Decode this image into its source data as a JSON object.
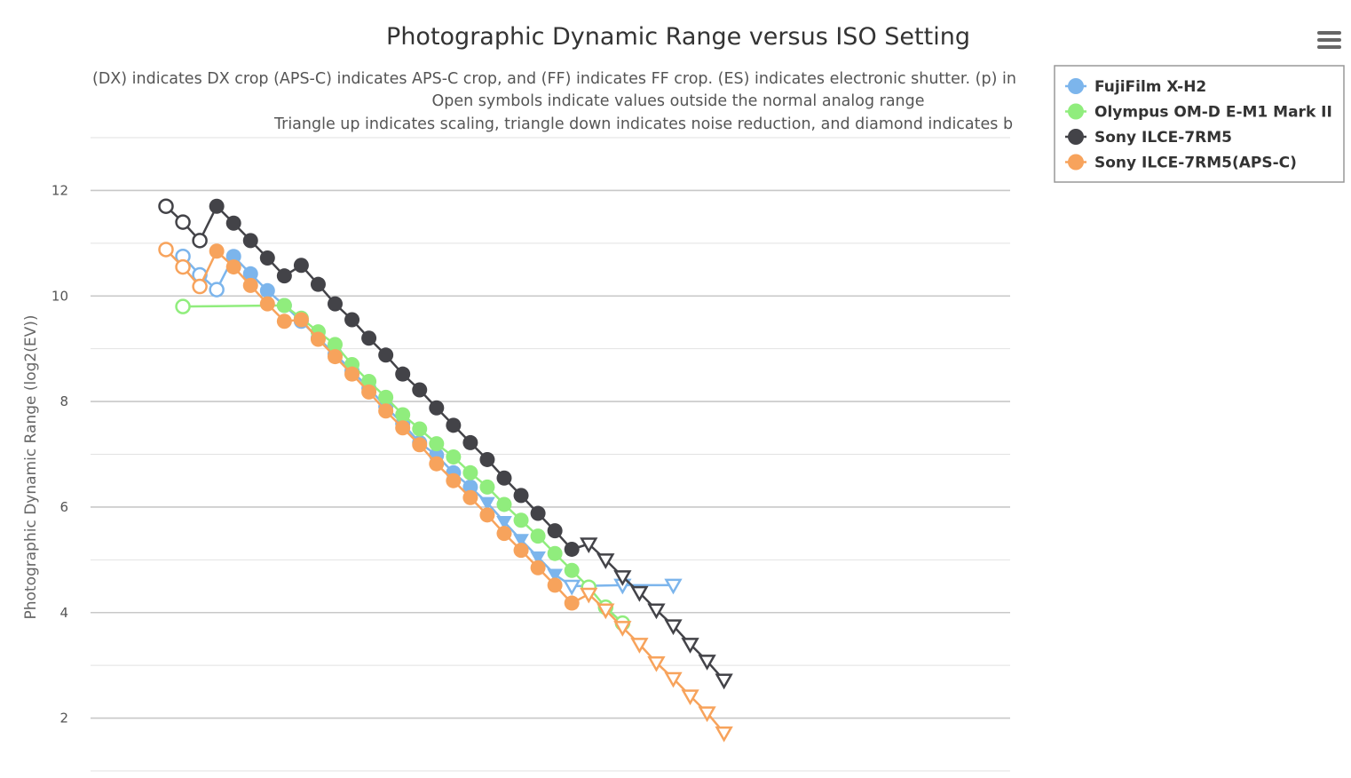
{
  "chart_data": {
    "type": "line",
    "title": "Photographic Dynamic Range versus ISO Setting",
    "subtitle": [
      "(DX) indicates DX crop (APS-C) indicates APS-C crop, and (FF) indicates FF crop. (ES) indicates electronic shutter. (p) in",
      "Open symbols indicate values outside the normal analog range",
      "Triangle up indicates scaling, triangle down indicates noise reduction, and diamond indicates b"
    ],
    "ylabel": "Photographic Dynamic Range (log2(EV))",
    "xlabel": "",
    "ylim": [
      1,
      13
    ],
    "yticks": [
      2,
      4,
      6,
      8,
      10,
      12
    ],
    "grid": true,
    "legend_position": "top-right",
    "series": [
      {
        "name": "FujiFilm X-H2",
        "color": "#7cb5ec",
        "points": [
          {
            "x": 1,
            "y": 10.75,
            "m": "o"
          },
          {
            "x": 2,
            "y": 10.4,
            "m": "o"
          },
          {
            "x": 3,
            "y": 10.12,
            "m": "o"
          },
          {
            "x": 4,
            "y": 10.75,
            "m": "c"
          },
          {
            "x": 5,
            "y": 10.42,
            "m": "c"
          },
          {
            "x": 6,
            "y": 10.1,
            "m": "c"
          },
          {
            "x": 7,
            "y": 9.82,
            "m": "c"
          },
          {
            "x": 8,
            "y": 9.52,
            "m": "c"
          },
          {
            "x": 9,
            "y": 9.2,
            "m": "c"
          },
          {
            "x": 10,
            "y": 8.9,
            "m": "c"
          },
          {
            "x": 11,
            "y": 8.58,
            "m": "c"
          },
          {
            "x": 12,
            "y": 8.25,
            "m": "c"
          },
          {
            "x": 13,
            "y": 7.9,
            "m": "c"
          },
          {
            "x": 14,
            "y": 7.58,
            "m": "c"
          },
          {
            "x": 15,
            "y": 7.22,
            "m": "c"
          },
          {
            "x": 16,
            "y": 6.98,
            "m": "c"
          },
          {
            "x": 17,
            "y": 6.65,
            "m": "c"
          },
          {
            "x": 18,
            "y": 6.38,
            "m": "c"
          },
          {
            "x": 19,
            "y": 6.08,
            "m": "v"
          },
          {
            "x": 20,
            "y": 5.72,
            "m": "v"
          },
          {
            "x": 21,
            "y": 5.38,
            "m": "v"
          },
          {
            "x": 22,
            "y": 5.05,
            "m": "v"
          },
          {
            "x": 23,
            "y": 4.72,
            "m": "v"
          },
          {
            "x": 24,
            "y": 4.5,
            "m": "vo"
          },
          {
            "x": 27,
            "y": 4.52,
            "m": "vo"
          },
          {
            "x": 30,
            "y": 4.52,
            "m": "vo"
          }
        ]
      },
      {
        "name": "Olympus OM-D E-M1 Mark II",
        "color": "#90ed7d",
        "points": [
          {
            "x": 1,
            "y": 9.8,
            "m": "o"
          },
          {
            "x": 7,
            "y": 9.82,
            "m": "c"
          },
          {
            "x": 8,
            "y": 9.58,
            "m": "c"
          },
          {
            "x": 9,
            "y": 9.32,
            "m": "c"
          },
          {
            "x": 10,
            "y": 9.08,
            "m": "c"
          },
          {
            "x": 11,
            "y": 8.7,
            "m": "c"
          },
          {
            "x": 12,
            "y": 8.38,
            "m": "c"
          },
          {
            "x": 13,
            "y": 8.08,
            "m": "c"
          },
          {
            "x": 14,
            "y": 7.75,
            "m": "c"
          },
          {
            "x": 15,
            "y": 7.48,
            "m": "c"
          },
          {
            "x": 16,
            "y": 7.2,
            "m": "c"
          },
          {
            "x": 17,
            "y": 6.95,
            "m": "c"
          },
          {
            "x": 18,
            "y": 6.65,
            "m": "c"
          },
          {
            "x": 19,
            "y": 6.38,
            "m": "c"
          },
          {
            "x": 20,
            "y": 6.05,
            "m": "c"
          },
          {
            "x": 21,
            "y": 5.75,
            "m": "c"
          },
          {
            "x": 22,
            "y": 5.45,
            "m": "c"
          },
          {
            "x": 23,
            "y": 5.12,
            "m": "c"
          },
          {
            "x": 24,
            "y": 4.8,
            "m": "c"
          },
          {
            "x": 25,
            "y": 4.48,
            "m": "o"
          },
          {
            "x": 26,
            "y": 4.1,
            "m": "o"
          },
          {
            "x": 27,
            "y": 3.8,
            "m": "o"
          }
        ]
      },
      {
        "name": "Sony ILCE-7RM5",
        "color": "#434348",
        "points": [
          {
            "x": 0,
            "y": 11.7,
            "m": "o"
          },
          {
            "x": 1,
            "y": 11.4,
            "m": "o"
          },
          {
            "x": 2,
            "y": 11.05,
            "m": "o"
          },
          {
            "x": 3,
            "y": 11.7,
            "m": "c"
          },
          {
            "x": 4,
            "y": 11.38,
            "m": "c"
          },
          {
            "x": 5,
            "y": 11.05,
            "m": "c"
          },
          {
            "x": 6,
            "y": 10.72,
            "m": "c"
          },
          {
            "x": 7,
            "y": 10.38,
            "m": "c"
          },
          {
            "x": 8,
            "y": 10.58,
            "m": "c"
          },
          {
            "x": 9,
            "y": 10.22,
            "m": "c"
          },
          {
            "x": 10,
            "y": 9.85,
            "m": "c"
          },
          {
            "x": 11,
            "y": 9.55,
            "m": "c"
          },
          {
            "x": 12,
            "y": 9.2,
            "m": "c"
          },
          {
            "x": 13,
            "y": 8.88,
            "m": "c"
          },
          {
            "x": 14,
            "y": 8.52,
            "m": "c"
          },
          {
            "x": 15,
            "y": 8.22,
            "m": "c"
          },
          {
            "x": 16,
            "y": 7.88,
            "m": "c"
          },
          {
            "x": 17,
            "y": 7.55,
            "m": "c"
          },
          {
            "x": 18,
            "y": 7.22,
            "m": "c"
          },
          {
            "x": 19,
            "y": 6.9,
            "m": "c"
          },
          {
            "x": 20,
            "y": 6.55,
            "m": "c"
          },
          {
            "x": 21,
            "y": 6.22,
            "m": "c"
          },
          {
            "x": 22,
            "y": 5.88,
            "m": "c"
          },
          {
            "x": 23,
            "y": 5.55,
            "m": "c"
          },
          {
            "x": 24,
            "y": 5.2,
            "m": "c"
          },
          {
            "x": 25,
            "y": 5.3,
            "m": "vo"
          },
          {
            "x": 26,
            "y": 5.0,
            "m": "vo"
          },
          {
            "x": 27,
            "y": 4.68,
            "m": "vo"
          },
          {
            "x": 28,
            "y": 4.38,
            "m": "vo"
          },
          {
            "x": 29,
            "y": 4.05,
            "m": "vo"
          },
          {
            "x": 30,
            "y": 3.75,
            "m": "vo"
          },
          {
            "x": 31,
            "y": 3.4,
            "m": "vo"
          },
          {
            "x": 32,
            "y": 3.08,
            "m": "vo"
          },
          {
            "x": 33,
            "y": 2.72,
            "m": "vo"
          }
        ]
      },
      {
        "name": "Sony ILCE-7RM5(APS-C)",
        "color": "#f7a35c",
        "points": [
          {
            "x": 0,
            "y": 10.88,
            "m": "o"
          },
          {
            "x": 1,
            "y": 10.55,
            "m": "o"
          },
          {
            "x": 2,
            "y": 10.18,
            "m": "o"
          },
          {
            "x": 3,
            "y": 10.85,
            "m": "c"
          },
          {
            "x": 4,
            "y": 10.55,
            "m": "c"
          },
          {
            "x": 5,
            "y": 10.2,
            "m": "c"
          },
          {
            "x": 6,
            "y": 9.85,
            "m": "c"
          },
          {
            "x": 7,
            "y": 9.52,
            "m": "c"
          },
          {
            "x": 8,
            "y": 9.55,
            "m": "c"
          },
          {
            "x": 9,
            "y": 9.18,
            "m": "c"
          },
          {
            "x": 10,
            "y": 8.85,
            "m": "c"
          },
          {
            "x": 11,
            "y": 8.52,
            "m": "c"
          },
          {
            "x": 12,
            "y": 8.18,
            "m": "c"
          },
          {
            "x": 13,
            "y": 7.82,
            "m": "c"
          },
          {
            "x": 14,
            "y": 7.5,
            "m": "c"
          },
          {
            "x": 15,
            "y": 7.18,
            "m": "c"
          },
          {
            "x": 16,
            "y": 6.82,
            "m": "c"
          },
          {
            "x": 17,
            "y": 6.5,
            "m": "c"
          },
          {
            "x": 18,
            "y": 6.18,
            "m": "c"
          },
          {
            "x": 19,
            "y": 5.85,
            "m": "c"
          },
          {
            "x": 20,
            "y": 5.5,
            "m": "c"
          },
          {
            "x": 21,
            "y": 5.18,
            "m": "c"
          },
          {
            "x": 22,
            "y": 4.85,
            "m": "c"
          },
          {
            "x": 23,
            "y": 4.52,
            "m": "c"
          },
          {
            "x": 24,
            "y": 4.18,
            "m": "c"
          },
          {
            "x": 25,
            "y": 4.35,
            "m": "vo"
          },
          {
            "x": 26,
            "y": 4.05,
            "m": "vo"
          },
          {
            "x": 27,
            "y": 3.72,
            "m": "vo"
          },
          {
            "x": 28,
            "y": 3.4,
            "m": "vo"
          },
          {
            "x": 29,
            "y": 3.05,
            "m": "vo"
          },
          {
            "x": 30,
            "y": 2.75,
            "m": "vo"
          },
          {
            "x": 31,
            "y": 2.42,
            "m": "vo"
          },
          {
            "x": 32,
            "y": 2.1,
            "m": "vo"
          },
          {
            "x": 33,
            "y": 1.72,
            "m": "vo"
          }
        ]
      }
    ]
  },
  "menu": {
    "icon": "hamburger-menu-icon",
    "color": "#666666"
  },
  "legend": {
    "border_color": "#999999"
  }
}
